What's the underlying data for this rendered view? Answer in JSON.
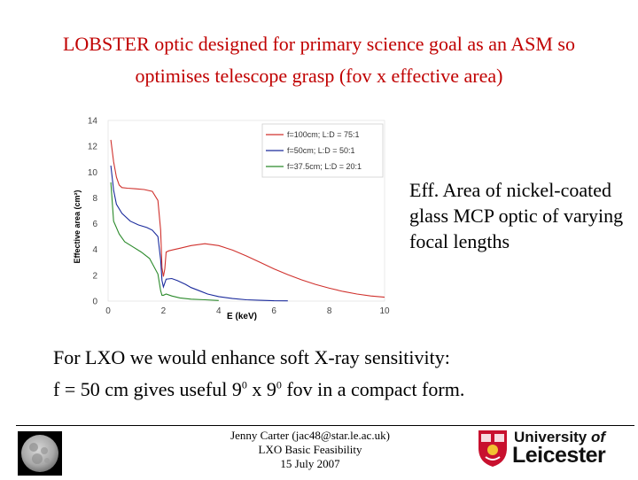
{
  "slide": {
    "title_line1": "LOBSTER optic designed for primary science goal as an ASM so",
    "title_line2": "optimises telescope grasp (fov x effective area)",
    "side_text": "Eff. Area of nickel-coated glass MCP optic of varying focal lengths",
    "body_line1": "For LXO we would enhance soft X-ray sensitivity:",
    "body_line2_a": "f = 50 cm gives useful 9",
    "body_line2_sup1": "0",
    "body_line2_b": " x 9",
    "body_line2_sup2": "0",
    "body_line2_c": " fov in a compact form."
  },
  "footer": {
    "line1": "Jenny Carter (jac48@star.le.ac.uk)",
    "line2": "LXO Basic Feasibility",
    "line3": "15 July 2007"
  },
  "logo": {
    "line1_a": "University ",
    "line1_b": "of",
    "line2": "Leicester"
  },
  "colors": {
    "title": "#c00000",
    "series_red": "#d0312d",
    "series_blue": "#1a2a9c",
    "series_green": "#2b8a2b"
  },
  "chart_data": {
    "type": "line",
    "title": "",
    "xlabel": "E (keV)",
    "ylabel": "Effective area (cm²)",
    "xlim": [
      0,
      10
    ],
    "ylim": [
      0,
      14
    ],
    "xticks": [
      "0",
      "2",
      "4",
      "6",
      "8",
      "10"
    ],
    "yticks": [
      "0",
      "2",
      "4",
      "6",
      "8",
      "10",
      "12",
      "14"
    ],
    "legend_position": "top-right",
    "series": [
      {
        "name": "f=100cm; L:D = 75:1",
        "color": "#d0312d",
        "x": [
          0.1,
          0.2,
          0.3,
          0.4,
          0.5,
          0.7,
          1.0,
          1.3,
          1.6,
          1.8,
          1.9,
          1.95,
          2.0,
          2.05,
          2.1,
          2.2,
          2.4,
          2.6,
          3.0,
          3.5,
          4.0,
          4.5,
          5.0,
          5.5,
          6.0,
          6.5,
          7.0,
          7.5,
          8.0,
          8.5,
          9.0,
          9.5,
          10.0
        ],
        "y": [
          12.5,
          10.8,
          9.6,
          9.0,
          8.8,
          8.75,
          8.7,
          8.65,
          8.5,
          7.8,
          5.5,
          2.6,
          1.9,
          2.5,
          3.8,
          3.9,
          4.0,
          4.1,
          4.3,
          4.45,
          4.3,
          3.95,
          3.5,
          3.0,
          2.5,
          2.05,
          1.65,
          1.3,
          1.0,
          0.75,
          0.55,
          0.4,
          0.3
        ]
      },
      {
        "name": "f=50cm; L:D = 50:1",
        "color": "#1a2a9c",
        "x": [
          0.1,
          0.2,
          0.3,
          0.5,
          0.8,
          1.1,
          1.4,
          1.6,
          1.8,
          1.9,
          1.95,
          2.0,
          2.1,
          2.3,
          2.5,
          2.8,
          3.0,
          3.3,
          3.6,
          4.0,
          4.5,
          5.0,
          5.5,
          6.0,
          6.5
        ],
        "y": [
          10.5,
          8.6,
          7.5,
          6.8,
          6.2,
          5.9,
          5.7,
          5.5,
          5.0,
          3.2,
          1.6,
          1.1,
          1.7,
          1.75,
          1.6,
          1.3,
          1.05,
          0.8,
          0.55,
          0.35,
          0.2,
          0.1,
          0.06,
          0.03,
          0.02
        ]
      },
      {
        "name": "f=37.5cm; L:D = 20:1",
        "color": "#2b8a2b",
        "x": [
          0.1,
          0.2,
          0.4,
          0.6,
          0.9,
          1.2,
          1.5,
          1.8,
          1.9,
          1.95,
          2.0,
          2.1,
          2.3,
          2.6,
          3.0,
          3.5,
          4.0
        ],
        "y": [
          9.2,
          6.2,
          5.2,
          4.6,
          4.2,
          3.8,
          3.3,
          2.1,
          0.8,
          0.45,
          0.45,
          0.55,
          0.4,
          0.25,
          0.15,
          0.1,
          0.05
        ]
      }
    ]
  }
}
